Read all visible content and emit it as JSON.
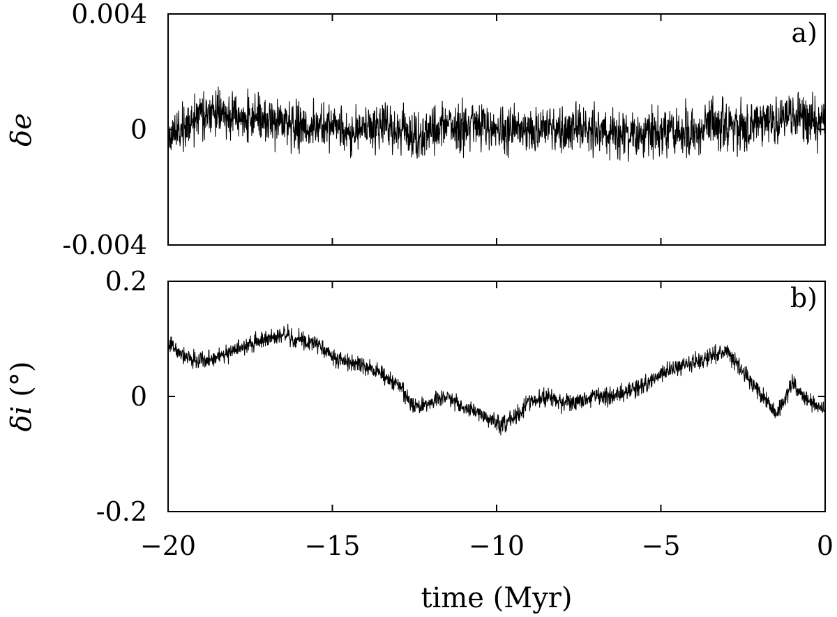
{
  "chart_data": [
    {
      "type": "line",
      "panel_label": "a)",
      "ylabel_symbol": "δ",
      "ylabel_var": "e",
      "ylabel_unit": "",
      "xlim": [
        -20,
        0
      ],
      "ylim": [
        -0.004,
        0.004
      ],
      "x_ticks": [
        -20,
        -15,
        -10,
        -5,
        0
      ],
      "y_ticks": [
        -0.004,
        0,
        0.004
      ],
      "y_tick_labels": [
        "-0.004",
        "0",
        "0.004"
      ],
      "grid": false,
      "series": [
        {
          "x": [
            -20,
            -19.5,
            -19,
            -18.5,
            -18,
            -17.5,
            -17,
            -16.5,
            -16,
            -15.5,
            -15,
            -14.5,
            -14,
            -13.5,
            -13,
            -12.5,
            -12,
            -11.5,
            -11,
            -10.5,
            -10,
            -9.5,
            -9,
            -8.5,
            -8,
            -7.5,
            -7,
            -6.5,
            -6,
            -5.5,
            -5,
            -4.5,
            -4,
            -3.5,
            -3,
            -2.5,
            -2,
            -1.5,
            -1,
            -0.5,
            0
          ],
          "y": [
            -0.0003,
            0.0002,
            0.0004,
            0.0005,
            0.0004,
            0.0005,
            0.0004,
            0.0002,
            0.0001,
            0.0001,
            0.0,
            -0.0001,
            0.0,
            0.0001,
            0.0,
            -0.0002,
            0.0,
            0.0001,
            0.0,
            0.0001,
            0.0,
            0.0,
            0.0001,
            0.0,
            0.0,
            0.0001,
            0.0,
            -0.0001,
            -0.0002,
            -0.0001,
            -0.0002,
            0.0,
            -0.0001,
            0.0002,
            0.0001,
            0.0001,
            0.0003,
            0.0004,
            0.0004,
            0.0003,
            0.0002
          ],
          "noise_amplitude": 0.0012
        }
      ]
    },
    {
      "type": "line",
      "panel_label": "b)",
      "ylabel_symbol": "δ",
      "ylabel_var": "i",
      "ylabel_unit": " (°)",
      "xlim": [
        -20,
        0
      ],
      "ylim": [
        -0.2,
        0.2
      ],
      "x_ticks": [
        -20,
        -15,
        -10,
        -5,
        0
      ],
      "x_tick_labels": [
        "−20",
        "−15",
        "−10",
        "−5",
        "0"
      ],
      "y_ticks": [
        -0.2,
        0,
        0.2
      ],
      "y_tick_labels": [
        "-0.2",
        "0",
        "0.2"
      ],
      "xlabel": "time (Myr)",
      "grid": false,
      "series": [
        {
          "x": [
            -20,
            -19.5,
            -19,
            -18.5,
            -18,
            -17.5,
            -17,
            -16.5,
            -16,
            -15.5,
            -15,
            -14.5,
            -14,
            -13.5,
            -13,
            -12.5,
            -12,
            -11.5,
            -11,
            -10.5,
            -10,
            -9.5,
            -9,
            -8.5,
            -8,
            -7.5,
            -7,
            -6.5,
            -6,
            -5.5,
            -5,
            -4.5,
            -4,
            -3.5,
            -3,
            -2.5,
            -2,
            -1.5,
            -1,
            -0.5,
            0
          ],
          "y": [
            0.09,
            0.07,
            0.06,
            0.07,
            0.08,
            0.09,
            0.1,
            0.11,
            0.1,
            0.09,
            0.07,
            0.06,
            0.05,
            0.04,
            0.02,
            -0.02,
            -0.01,
            0.0,
            -0.02,
            -0.03,
            -0.05,
            -0.04,
            -0.01,
            0.0,
            -0.01,
            -0.01,
            0.0,
            0.0,
            0.01,
            0.02,
            0.04,
            0.05,
            0.06,
            0.07,
            0.08,
            0.04,
            0.01,
            -0.03,
            0.02,
            -0.01,
            -0.02
          ],
          "noise_amplitude": 0.022
        }
      ]
    }
  ]
}
